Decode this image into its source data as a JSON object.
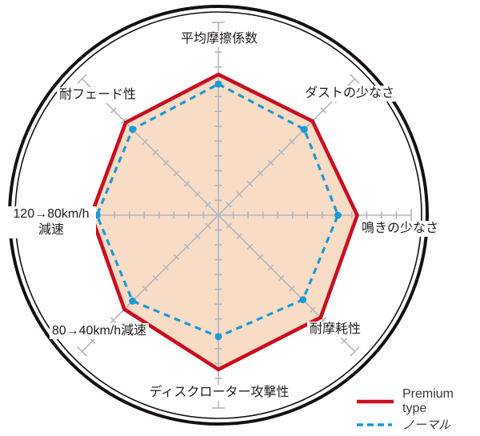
{
  "chart_data": {
    "type": "radar",
    "title": "",
    "axes": [
      "平均摩擦係数",
      "ダストの少なさ",
      "鳴きの少なさ",
      "耐摩耗性",
      "ディスクローター攻撃性",
      "80→40km/h減速",
      "120→80km/h減速",
      "耐フェード性"
    ],
    "scale_max": 10,
    "series": [
      {
        "name": "Premium type",
        "line": "solid",
        "color": "#c9101f",
        "fill": "#f8dcc6",
        "values": [
          7.3,
          6.9,
          7.2,
          7.5,
          8.0,
          6.9,
          6.6,
          6.8
        ]
      },
      {
        "name": "ノーマル",
        "line": "dashed",
        "color": "#1b9ad6",
        "values": [
          6.8,
          6.3,
          6.2,
          6.2,
          6.3,
          6.3,
          6.3,
          6.3
        ]
      }
    ],
    "grid": {
      "shape": "octagon-8-axes",
      "tick_count": 13,
      "axis_color": "#b0b8be",
      "ring_color": "#161010",
      "legend_position": "bottom-right"
    }
  },
  "labels": {
    "top": "平均摩擦係数",
    "top_right": "ダストの少なさ",
    "right": "鳴きの少なさ",
    "bottom_right": "耐摩耗性",
    "bottom": "ディスクローター攻撃性",
    "bottom_left": "80→40km/h減速",
    "left_line1": "120→80km/h",
    "left_line2": "減速",
    "top_left": "耐フェード性"
  }
}
